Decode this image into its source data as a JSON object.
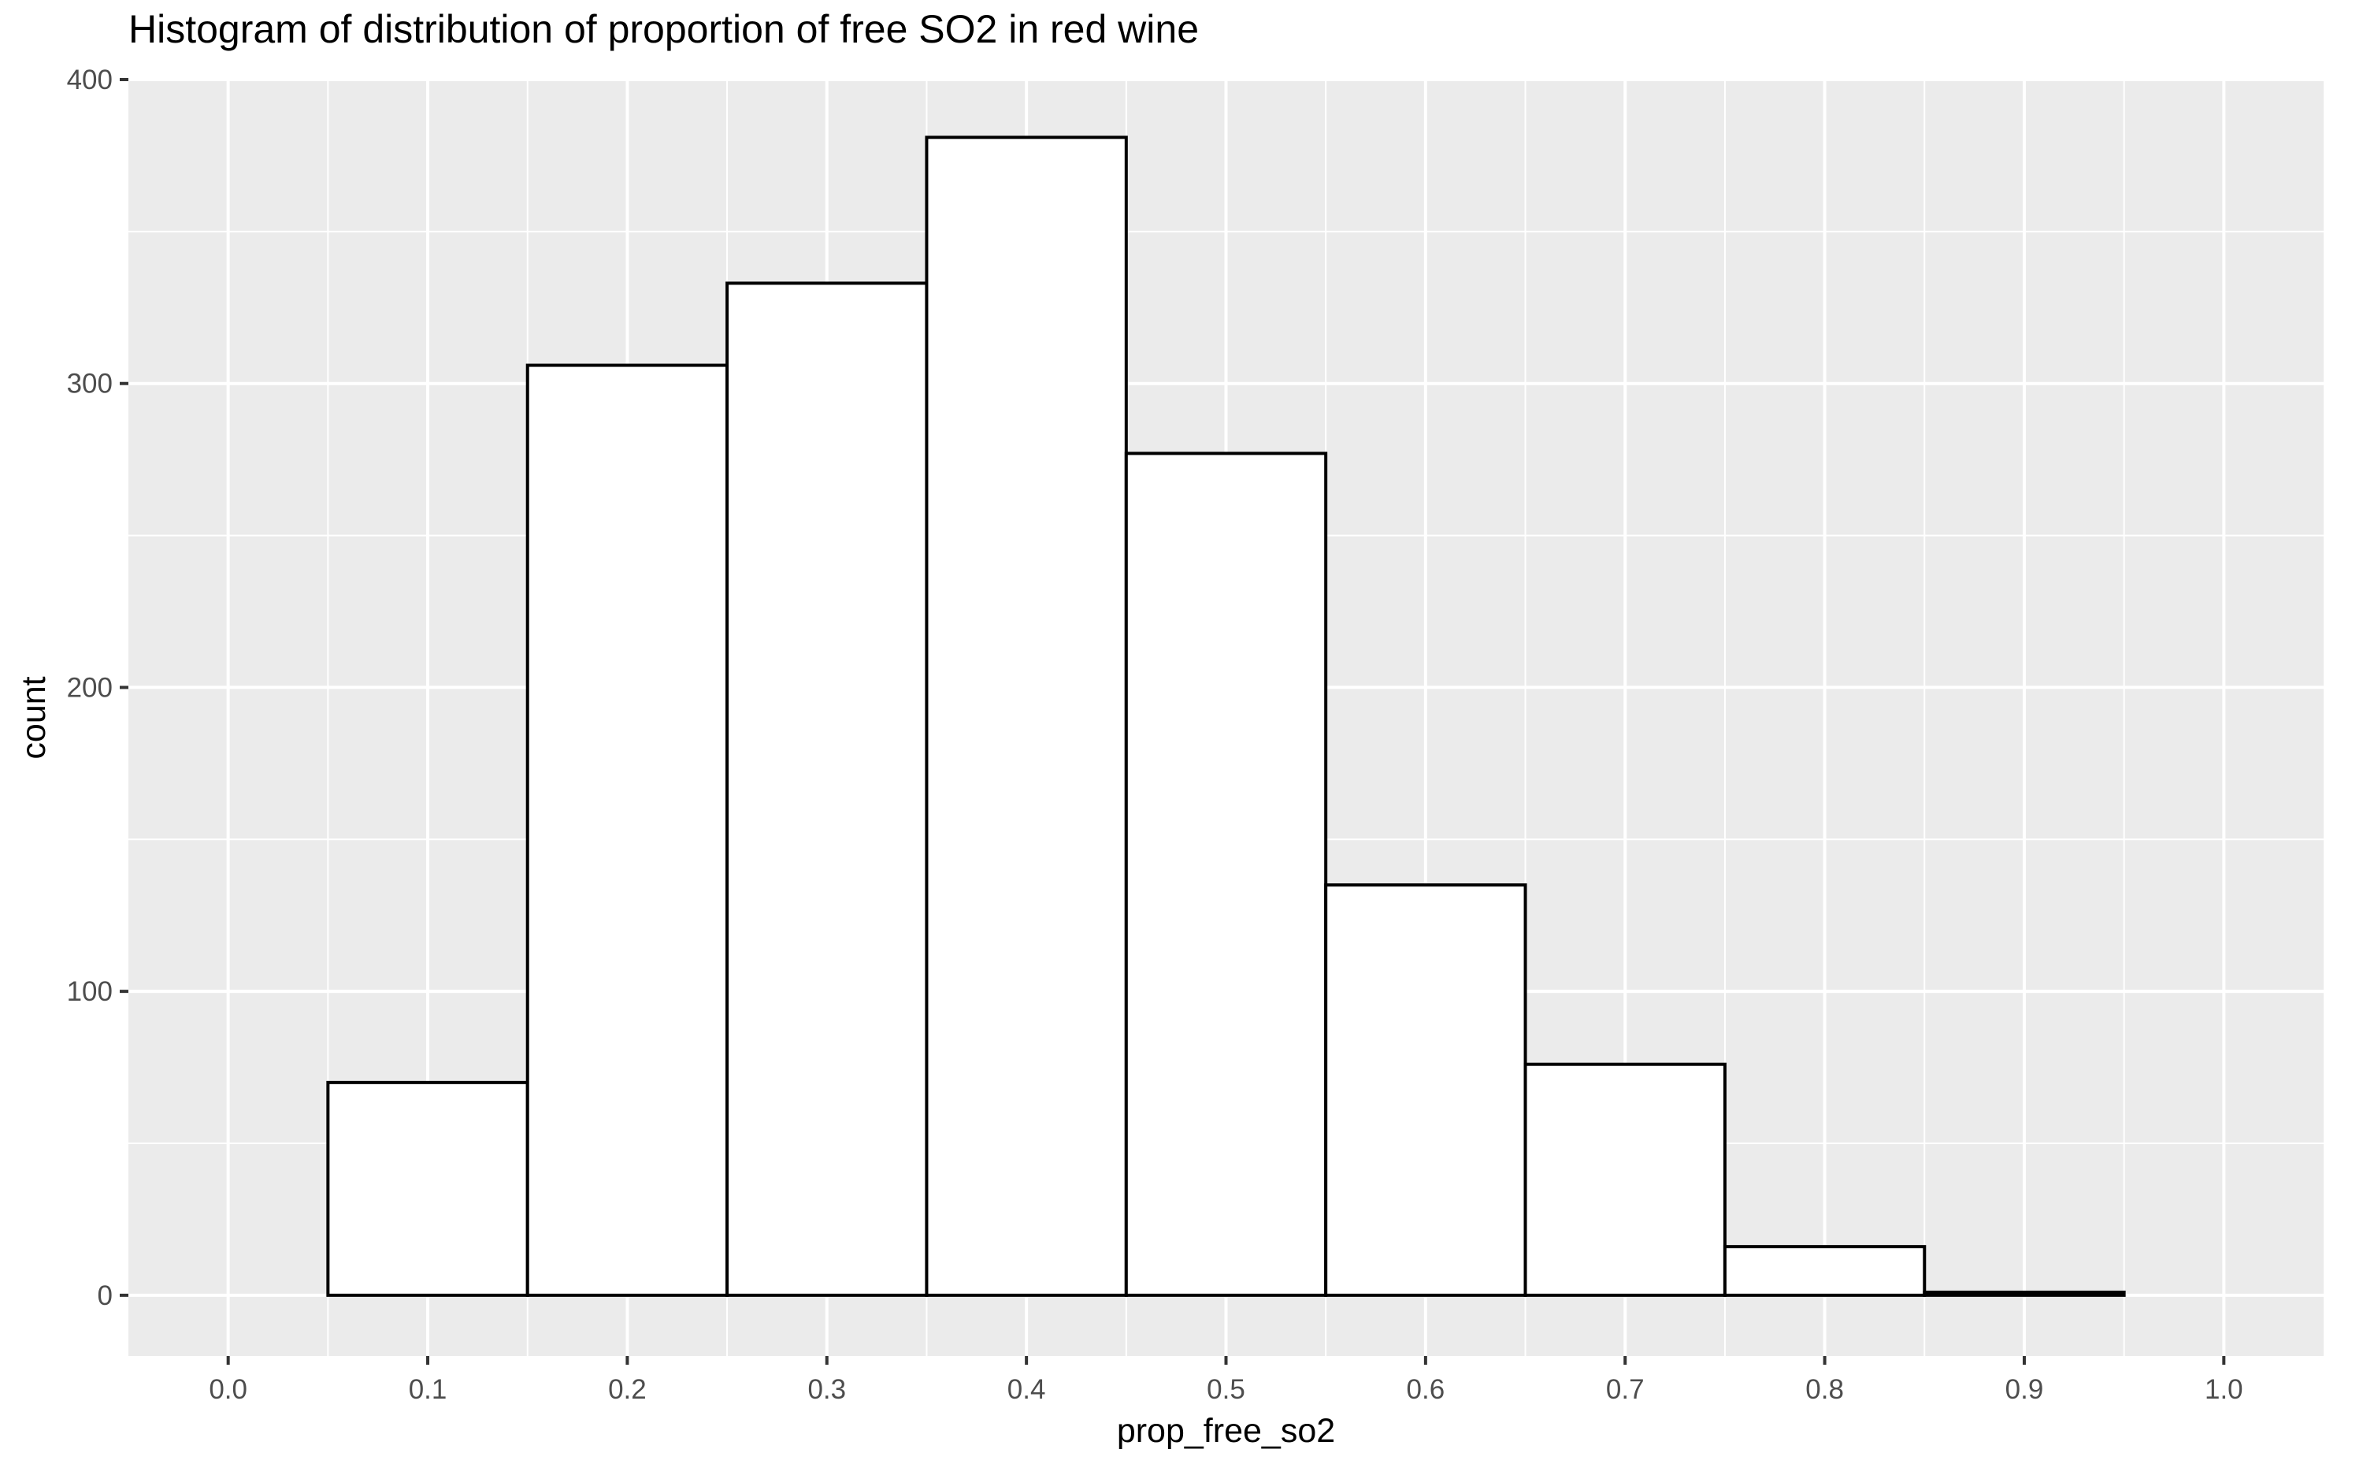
{
  "chart_data": {
    "type": "bar",
    "title": "Histogram of distribution of proportion of free SO2 in red wine",
    "xlabel": "prop_free_so2",
    "ylabel": "count",
    "xlim": [
      -0.05,
      1.05
    ],
    "ylim": [
      -20,
      400
    ],
    "x_ticks": [
      "0.0",
      "0.1",
      "0.2",
      "0.3",
      "0.4",
      "0.5",
      "0.6",
      "0.7",
      "0.8",
      "0.9",
      "1.0"
    ],
    "y_ticks": [
      "0",
      "100",
      "200",
      "300",
      "400"
    ],
    "bins": [
      {
        "x0": 0.05,
        "x1": 0.15,
        "count": 70
      },
      {
        "x0": 0.15,
        "x1": 0.25,
        "count": 306
      },
      {
        "x0": 0.25,
        "x1": 0.35,
        "count": 333
      },
      {
        "x0": 0.35,
        "x1": 0.45,
        "count": 381
      },
      {
        "x0": 0.45,
        "x1": 0.55,
        "count": 277
      },
      {
        "x0": 0.55,
        "x1": 0.65,
        "count": 135
      },
      {
        "x0": 0.65,
        "x1": 0.75,
        "count": 76
      },
      {
        "x0": 0.75,
        "x1": 0.85,
        "count": 16
      },
      {
        "x0": 0.85,
        "x1": 0.95,
        "count": 1
      }
    ],
    "grid": true,
    "legend": "none",
    "colors": {
      "panel_background": "#EBEBEB",
      "grid": "#FFFFFF",
      "bar_fill": "#FFFFFF",
      "bar_outline": "#000000",
      "tick_text": "#4D4D4D",
      "tick_mark": "#333333"
    }
  }
}
